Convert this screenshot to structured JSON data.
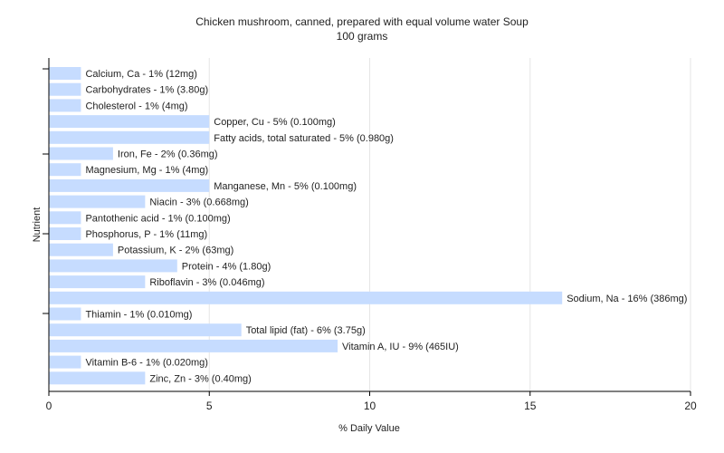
{
  "chart_data": {
    "type": "bar",
    "orientation": "horizontal",
    "title": "Chicken mushroom, canned, prepared with equal volume water Soup",
    "subtitle": "100 grams",
    "xlabel": "% Daily Value",
    "ylabel": "Nutrient",
    "xlim": [
      0,
      20
    ],
    "xticks": [
      0,
      5,
      10,
      15,
      20
    ],
    "grid": true,
    "legend": "none",
    "bar_color": "#c6dcff",
    "categories": [
      "Calcium, Ca",
      "Carbohydrates",
      "Cholesterol",
      "Copper, Cu",
      "Fatty acids, total saturated",
      "Iron, Fe",
      "Magnesium, Mg",
      "Manganese, Mn",
      "Niacin",
      "Pantothenic acid",
      "Phosphorus, P",
      "Potassium, K",
      "Protein",
      "Riboflavin",
      "Sodium, Na",
      "Thiamin",
      "Total lipid (fat)",
      "Vitamin A, IU",
      "Vitamin B-6",
      "Zinc, Zn"
    ],
    "values": [
      1,
      1,
      1,
      5,
      5,
      2,
      1,
      5,
      3,
      1,
      1,
      2,
      4,
      3,
      16,
      1,
      6,
      9,
      1,
      3
    ],
    "bar_labels": [
      "Calcium, Ca - 1% (12mg)",
      "Carbohydrates - 1% (3.80g)",
      "Cholesterol - 1% (4mg)",
      "Copper, Cu - 5% (0.100mg)",
      "Fatty acids, total saturated - 5% (0.980g)",
      "Iron, Fe - 2% (0.36mg)",
      "Magnesium, Mg - 1% (4mg)",
      "Manganese, Mn - 5% (0.100mg)",
      "Niacin - 3% (0.668mg)",
      "Pantothenic acid - 1% (0.100mg)",
      "Phosphorus, P - 1% (11mg)",
      "Potassium, K - 2% (63mg)",
      "Protein - 4% (1.80g)",
      "Riboflavin - 3% (0.046mg)",
      "Sodium, Na - 16% (386mg)",
      "Thiamin - 1% (0.010mg)",
      "Total lipid (fat) - 6% (3.75g)",
      "Vitamin A, IU - 9% (465IU)",
      "Vitamin B-6 - 1% (0.020mg)",
      "Zinc, Zn - 3% (0.40mg)"
    ]
  }
}
